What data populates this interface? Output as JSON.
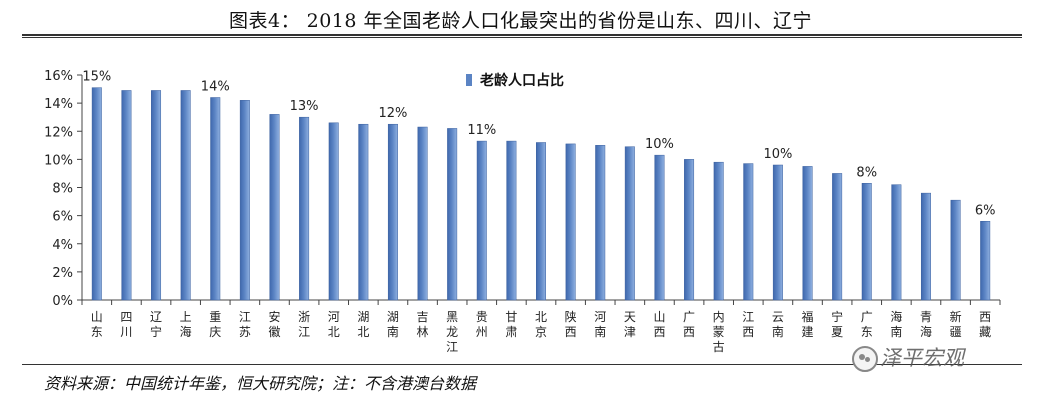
{
  "header": {
    "title": "图表4： 2018 年全国老龄人口化最突出的省份是山东、四川、辽宁"
  },
  "footer": {
    "source": "资料来源：中国统计年鉴，恒大研究院；注：不含港澳台数据",
    "brand": "泽平宏观"
  },
  "chart_data": {
    "type": "bar",
    "legend": "老龄人口占比",
    "legend_placement": "top-center",
    "bar_color": "#5b84c4",
    "categories": [
      "山东",
      "四川",
      "辽宁",
      "上海",
      "重庆",
      "江苏",
      "安徽",
      "浙江",
      "河北",
      "湖北",
      "湖南",
      "吉林",
      "黑龙江",
      "贵州",
      "甘肃",
      "北京",
      "陕西",
      "河南",
      "天津",
      "山西",
      "广西",
      "内蒙古",
      "江西",
      "云南",
      "福建",
      "宁夏",
      "广东",
      "海南",
      "青海",
      "新疆",
      "西藏"
    ],
    "values": [
      15.1,
      14.9,
      14.9,
      14.9,
      14.4,
      14.2,
      13.2,
      13.0,
      12.6,
      12.5,
      12.5,
      12.3,
      12.2,
      11.3,
      11.3,
      11.2,
      11.1,
      11.0,
      10.9,
      10.3,
      10.0,
      9.8,
      9.7,
      9.6,
      9.5,
      9.0,
      8.3,
      8.2,
      7.6,
      7.1,
      5.6
    ],
    "data_labels": [
      {
        "index": 0,
        "text": "15%"
      },
      {
        "index": 4,
        "text": "14%"
      },
      {
        "index": 7,
        "text": "13%"
      },
      {
        "index": 10,
        "text": "12%"
      },
      {
        "index": 13,
        "text": "11%"
      },
      {
        "index": 19,
        "text": "10%"
      },
      {
        "index": 23,
        "text": "10%"
      },
      {
        "index": 26,
        "text": "8%"
      },
      {
        "index": 30,
        "text": "6%"
      }
    ],
    "ylim": [
      0,
      16
    ],
    "yticks": [
      0,
      2,
      4,
      6,
      8,
      10,
      12,
      14,
      16
    ],
    "ytick_format": "%",
    "grid": false
  }
}
